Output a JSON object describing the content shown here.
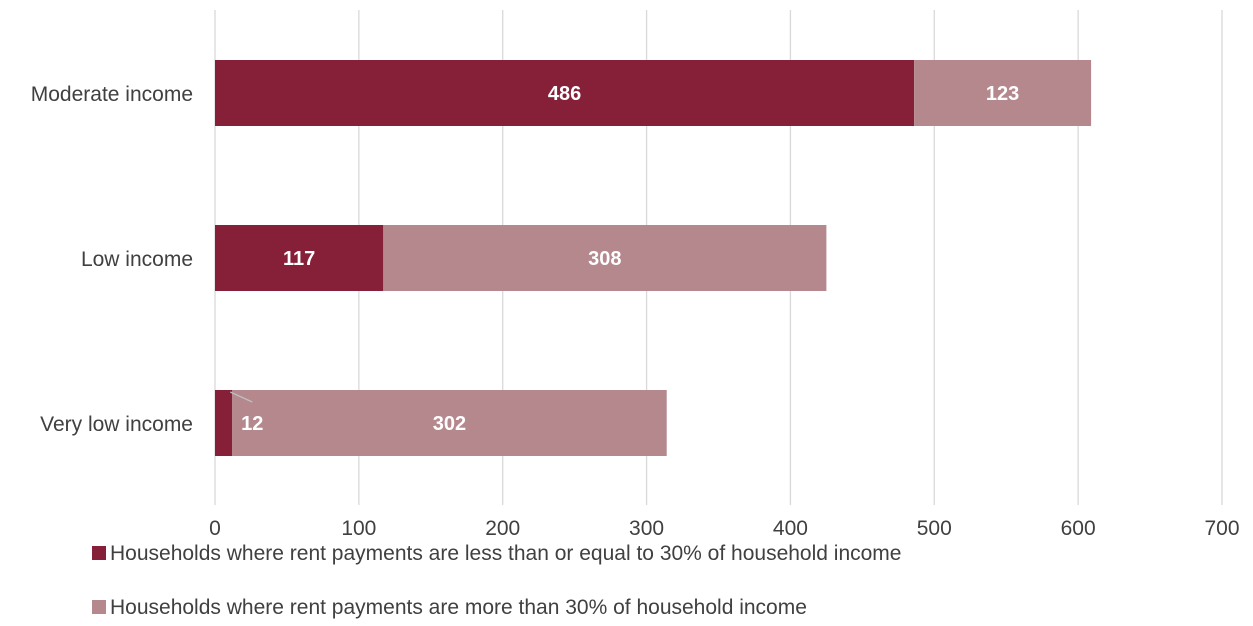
{
  "chart_data": {
    "type": "bar",
    "orientation": "horizontal",
    "stacked": true,
    "categories": [
      "Moderate income",
      "Low income",
      "Very low income"
    ],
    "series": [
      {
        "name": "Households where rent payments are less than or equal to 30% of household income",
        "values": [
          486,
          117,
          12
        ],
        "color": "#862038"
      },
      {
        "name": "Households where rent payments are more than 30% of household income",
        "values": [
          123,
          308,
          302
        ],
        "color": "#B5888E"
      }
    ],
    "xlim": [
      0,
      700
    ],
    "xticks": [
      0,
      100,
      200,
      300,
      400,
      500,
      600,
      700
    ],
    "xtick_labels": [
      "0",
      "100",
      "200",
      "300",
      "400",
      "500",
      "600",
      "700"
    ],
    "grid": "vertical",
    "legend_position": "bottom",
    "data_labels": true
  }
}
